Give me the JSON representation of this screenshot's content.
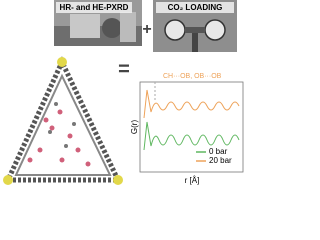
{
  "header": {
    "left_label": "HR- and HE-PXRD",
    "plus": "+",
    "right_label": "CO₂ LOADING"
  },
  "equals": "=",
  "plot": {
    "annotation": "CH···OB, OB···OB",
    "y_label": "G(r)",
    "x_label": "r [Å]",
    "legend": [
      {
        "name": "0 bar",
        "color": "#5fb760"
      },
      {
        "name": "20 bar",
        "color": "#eea35a"
      }
    ]
  }
}
